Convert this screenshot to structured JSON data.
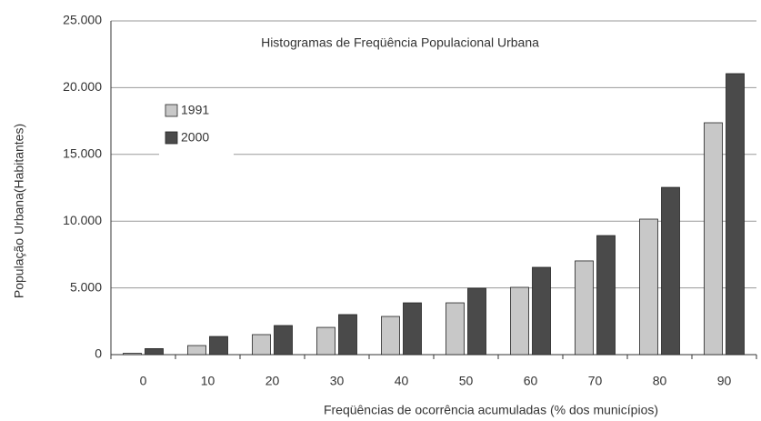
{
  "chart_data": {
    "type": "bar",
    "title": "Histogramas de Freqüência Populacional Urbana",
    "x_label": "Freqüências de ocorrência acumuladas (% dos municípios)",
    "y_label": "População Urbana(Habitantes)",
    "categories": [
      "0",
      "10",
      "20",
      "30",
      "40",
      "50",
      "60",
      "70",
      "80",
      "90"
    ],
    "series": [
      {
        "name": "1991",
        "color": "#c8c8c8",
        "values": [
          100,
          680,
          1500,
          2040,
          2860,
          3880,
          5040,
          7020,
          10150,
          17370
        ]
      },
      {
        "name": "2000",
        "color": "#4a4a4a",
        "values": [
          450,
          1360,
          2180,
          3000,
          3880,
          4970,
          6540,
          8920,
          12530,
          21050
        ]
      }
    ],
    "ylim": [
      0,
      25000
    ],
    "yticks": [
      0,
      {
        "value": 5000,
        "label": "5.000"
      },
      {
        "value": 10000,
        "label": "10.000"
      },
      {
        "value": 15000,
        "label": "15.000"
      },
      {
        "value": 20000,
        "label": "20.000"
      },
      {
        "value": 25000,
        "label": "25.000"
      }
    ],
    "grid": true,
    "legend": "upper left"
  }
}
